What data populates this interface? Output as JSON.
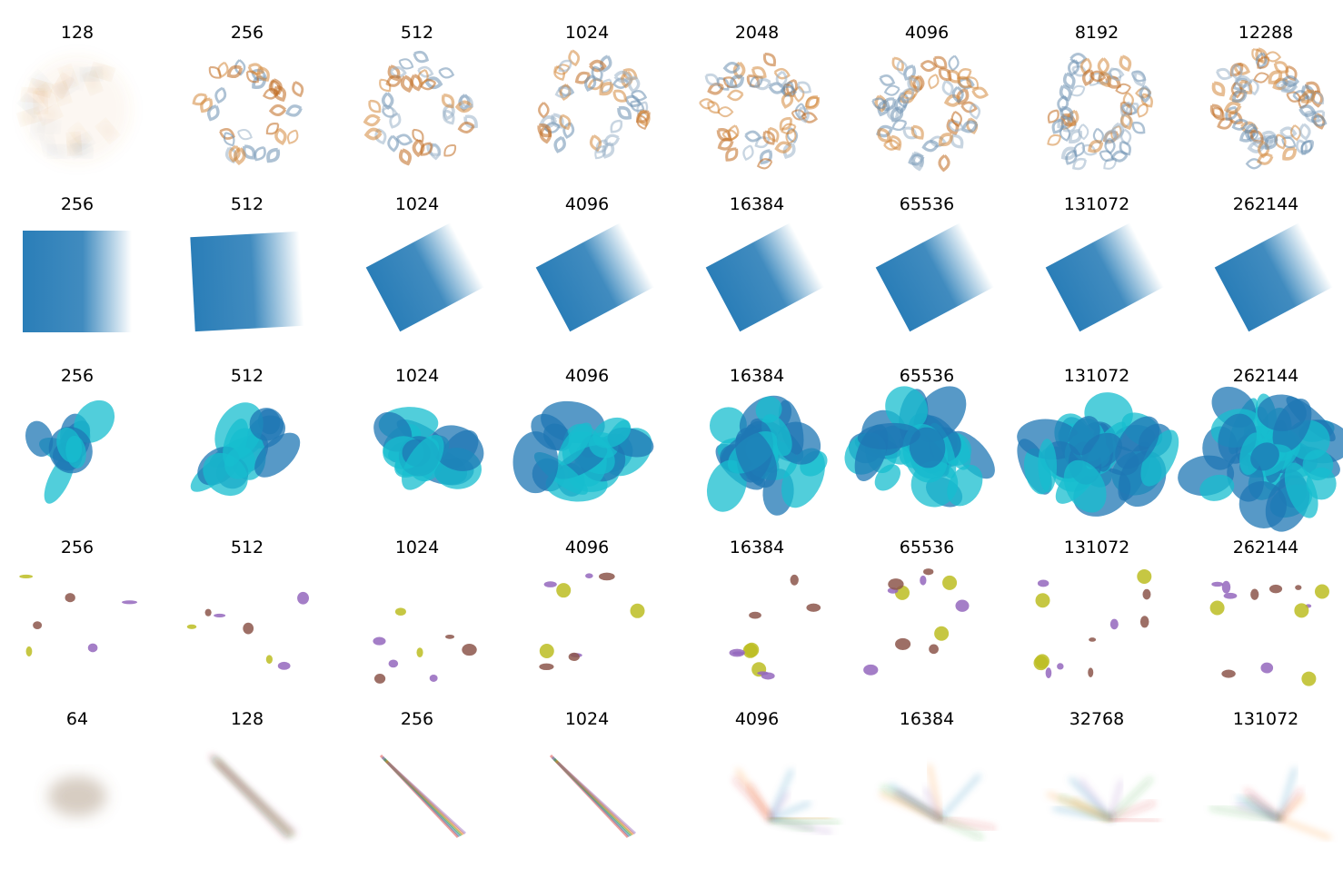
{
  "rows": [
    {
      "kind": "ring",
      "colors": [
        "#c06a1f",
        "#6b8fb0",
        "#d4883c",
        "#9bb3c8"
      ],
      "labels": [
        "128",
        "256",
        "512",
        "1024",
        "2048",
        "4096",
        "8192",
        "12288"
      ]
    },
    {
      "kind": "block",
      "colors": [
        "#1f77b4"
      ],
      "labels": [
        "256",
        "512",
        "1024",
        "4096",
        "16384",
        "65536",
        "131072",
        "262144"
      ]
    },
    {
      "kind": "blob",
      "colors": [
        "#1f77b4",
        "#17becf"
      ],
      "labels": [
        "256",
        "512",
        "1024",
        "4096",
        "16384",
        "65536",
        "131072",
        "262144"
      ]
    },
    {
      "kind": "clusters",
      "colors": [
        "#9467bd",
        "#8c564b",
        "#bcbd22"
      ],
      "labels": [
        "256",
        "512",
        "1024",
        "4096",
        "16384",
        "65536",
        "131072",
        "262144"
      ]
    },
    {
      "kind": "streaks",
      "colors": [
        "#d62728",
        "#1f77b4",
        "#2ca02c",
        "#ff7f0e",
        "#9467bd"
      ],
      "labels": [
        "64",
        "128",
        "256",
        "1024",
        "4096",
        "16384",
        "32768",
        "131072"
      ]
    }
  ]
}
